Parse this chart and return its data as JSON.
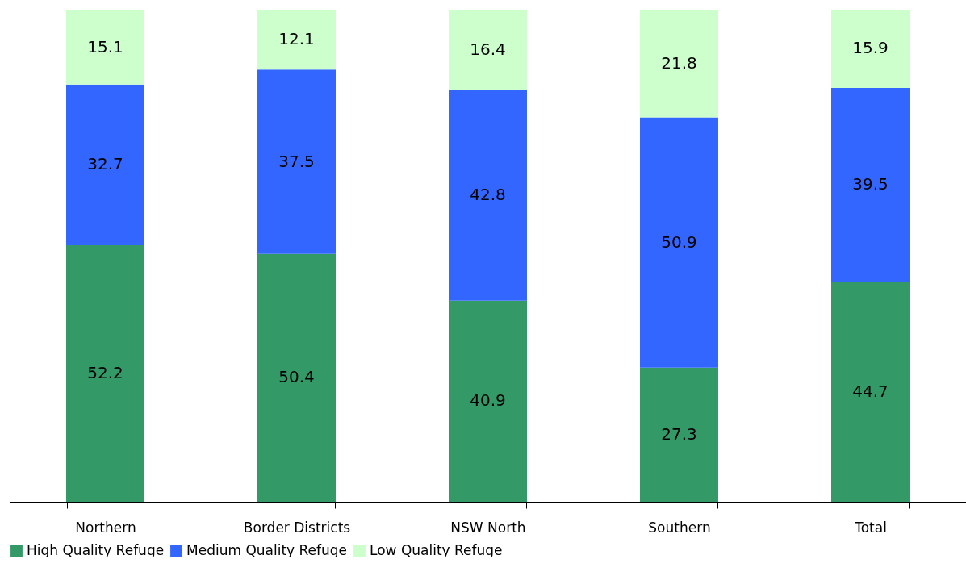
{
  "chart_data": {
    "type": "bar",
    "stacked": true,
    "data_labels": true,
    "legend": "bottom",
    "grid": false,
    "tick_labels": "x",
    "categories": [
      "Northern",
      "Border Districts",
      "NSW North",
      "Southern",
      "Total"
    ],
    "series": [
      {
        "name": "High Quality Refuge",
        "color": "#339966",
        "values": [
          52.2,
          50.4,
          40.9,
          27.3,
          44.7
        ]
      },
      {
        "name": "Medium Quality Refuge",
        "color": "#3366ff",
        "values": [
          32.7,
          37.5,
          42.8,
          50.9,
          39.5
        ]
      },
      {
        "name": "Low Quality Refuge",
        "color": "#ccffcc",
        "values": [
          15.1,
          12.1,
          16.4,
          21.8,
          15.9
        ]
      }
    ]
  }
}
